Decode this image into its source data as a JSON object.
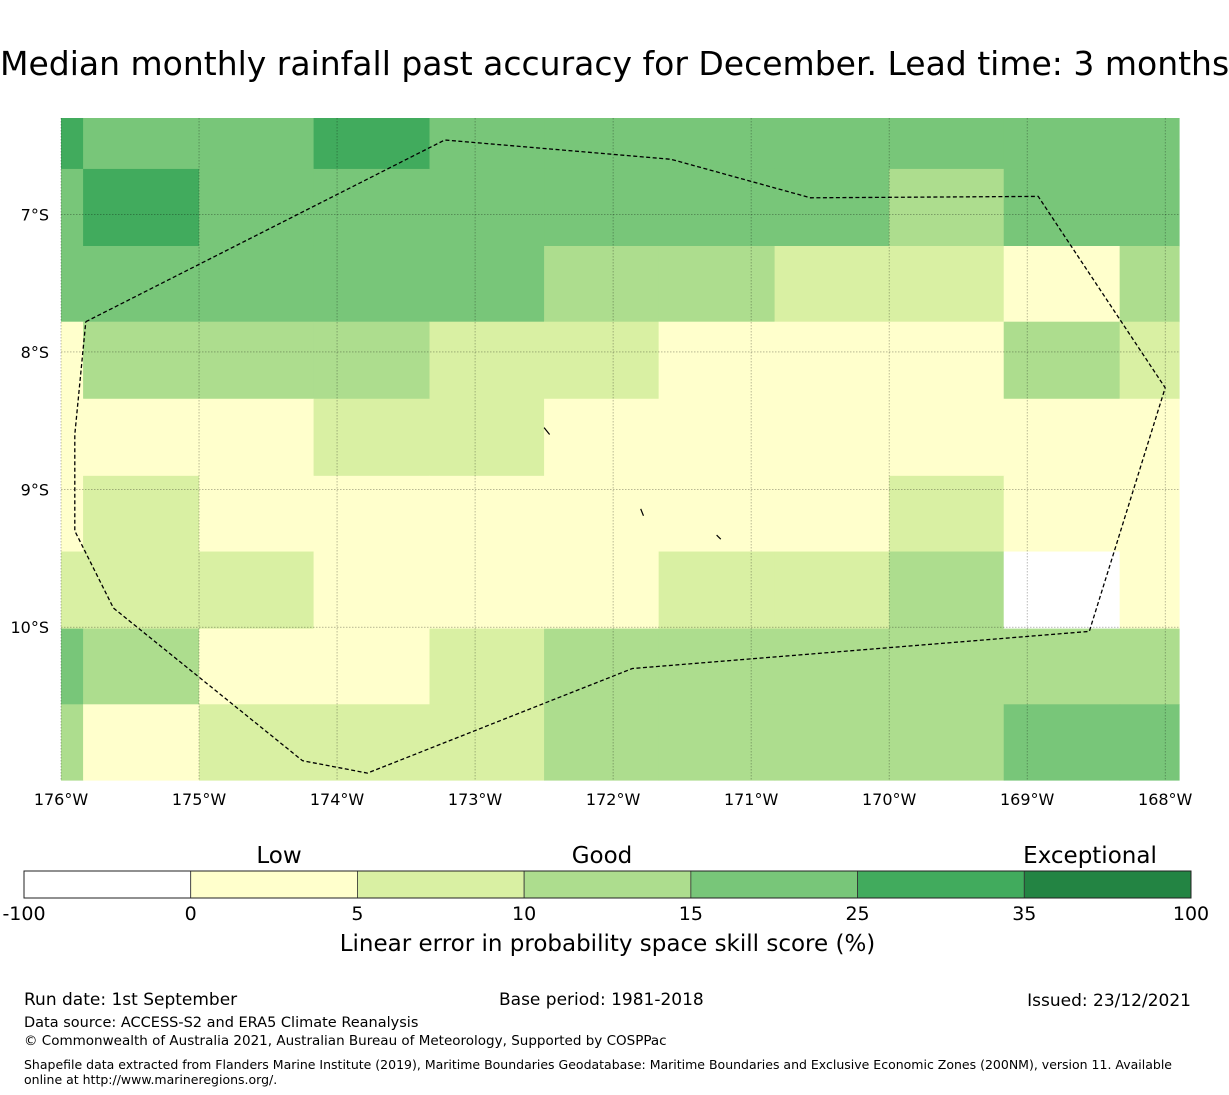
{
  "title": "Median monthly rainfall past accuracy for December. Lead time: 3 months",
  "map": {
    "type": "gridded-skill-map",
    "lon_range": [
      -176,
      -167.9
    ],
    "lat_range": [
      -11.11,
      -6.3
    ],
    "lon_ticks": [
      "176°W",
      "175°W",
      "174°W",
      "173°W",
      "172°W",
      "171°W",
      "170°W",
      "169°W",
      "168°W"
    ],
    "lat_ticks": [
      "7°S",
      "8°S",
      "9°S",
      "10°S"
    ],
    "grid": true,
    "col_edges_lon": [
      -176.0,
      -175.84,
      -175.0,
      -174.17,
      -173.33,
      -172.5,
      -171.67,
      -170.83,
      -170.0,
      -169.17,
      -168.33,
      -167.9
    ],
    "row_edges_lat": [
      -6.3,
      -6.67,
      -7.23,
      -7.78,
      -8.34,
      -8.9,
      -9.45,
      -10.01,
      -10.56,
      -11.11
    ],
    "cells_class": [
      [
        4,
        3,
        3,
        4,
        3,
        3,
        3,
        3,
        3,
        3,
        3
      ],
      [
        3,
        4,
        3,
        3,
        3,
        3,
        3,
        3,
        2,
        3,
        3
      ],
      [
        3,
        3,
        3,
        3,
        3,
        2,
        2,
        1,
        1,
        0,
        2
      ],
      [
        0,
        2,
        2,
        2,
        1,
        1,
        0,
        0,
        0,
        2,
        1
      ],
      [
        0,
        0,
        0,
        1,
        1,
        0,
        0,
        0,
        0,
        0,
        0
      ],
      [
        0,
        1,
        0,
        0,
        0,
        0,
        0,
        0,
        1,
        0,
        0
      ],
      [
        1,
        1,
        1,
        0,
        0,
        0,
        1,
        1,
        2,
        -1,
        0
      ],
      [
        3,
        2,
        0,
        0,
        1,
        2,
        2,
        2,
        2,
        2,
        2
      ],
      [
        2,
        0,
        1,
        1,
        1,
        2,
        2,
        2,
        2,
        3,
        3
      ]
    ],
    "boundary_lonlat": [
      [
        -175.82,
        -7.78
      ],
      [
        -173.22,
        -6.46
      ],
      [
        -171.58,
        -6.6
      ],
      [
        -170.57,
        -6.88
      ],
      [
        -168.92,
        -6.87
      ],
      [
        -168.0,
        -8.26
      ],
      [
        -168.55,
        -10.03
      ],
      [
        -171.86,
        -10.3
      ],
      [
        -173.78,
        -11.06
      ],
      [
        -174.25,
        -10.97
      ],
      [
        -175.62,
        -9.86
      ],
      [
        -175.9,
        -9.3
      ],
      [
        -175.9,
        -8.6
      ],
      [
        -175.82,
        -7.78
      ]
    ],
    "islands_lonlat": [
      [
        [
          -172.5,
          -8.55
        ],
        [
          -172.46,
          -8.6
        ]
      ],
      [
        [
          -171.8,
          -9.14
        ],
        [
          -171.78,
          -9.19
        ]
      ],
      [
        [
          -171.25,
          -9.33
        ],
        [
          -171.22,
          -9.36
        ]
      ]
    ],
    "boundary_color": "#000000",
    "class_colors": [
      "#ffffcc",
      "#d9f0a3",
      "#addd8e",
      "#78c679",
      "#41ab5d",
      "#238443"
    ],
    "missing_color": "#ffffff"
  },
  "colorbar": {
    "categories": [
      "Low",
      "Good",
      "Exceptional"
    ],
    "ticks": [
      "-100",
      "0",
      "5",
      "10",
      "15",
      "25",
      "35",
      "100"
    ],
    "colors": [
      "#ffffff",
      "#ffffcc",
      "#d9f0a3",
      "#addd8e",
      "#78c679",
      "#41ab5d",
      "#238443"
    ],
    "label": "Linear error in probability space skill score (%)"
  },
  "footer": {
    "run_date": "Run date: 1st September",
    "base_period": "Base period: 1981-2018",
    "issued": "Issued: 23/12/2021",
    "data_source": "Data source: ACCESS-S2 and ERA5 Climate Reanalysis",
    "copyright": "© Commonwealth of Australia 2021, Australian Bureau of Meteorology, Supported by COSPPac",
    "shapefile": "Shapefile data extracted from Flanders Marine Institute (2019), Maritime Boundaries Geodatabase: Maritime Boundaries and Exclusive Economic Zones (200NM), version 11. Available online at http://www.marineregions.org/."
  }
}
